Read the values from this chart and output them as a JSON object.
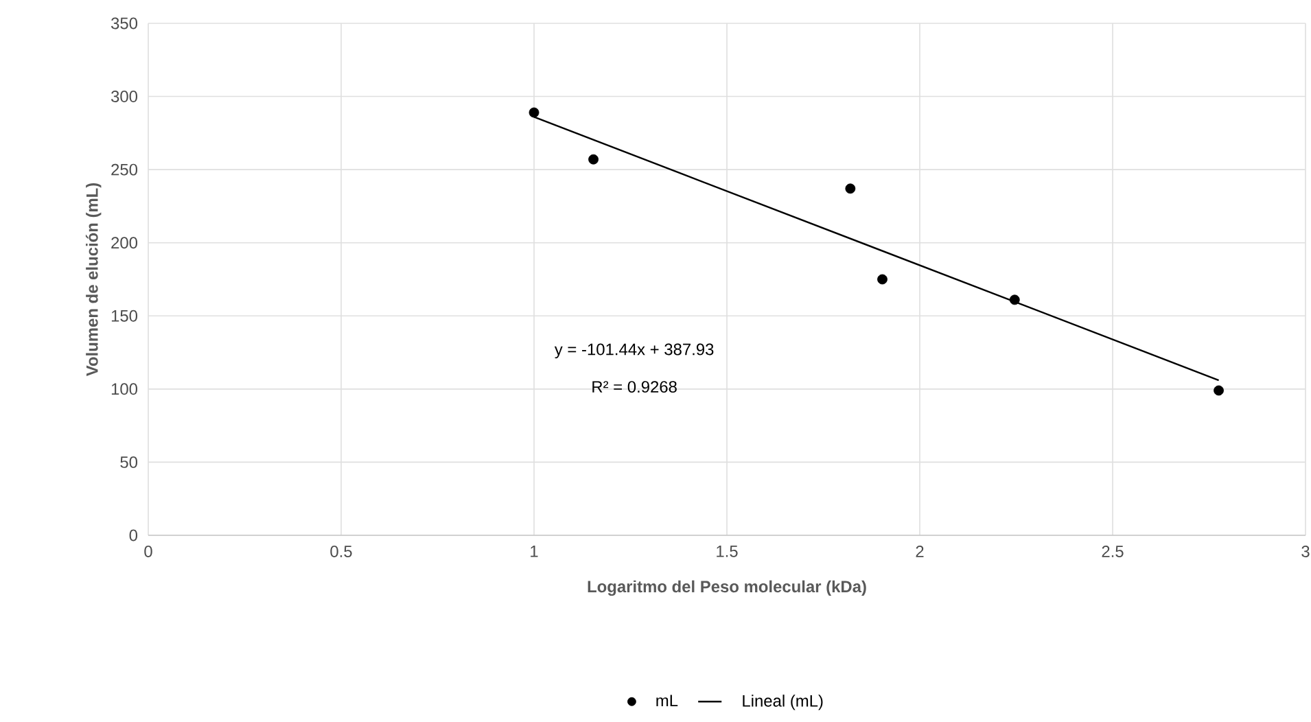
{
  "chart_data": {
    "type": "scatter",
    "xlabel": "Logaritmo del Peso molecular (kDa)",
    "ylabel": "Volumen de elución (mL)",
    "xlim": [
      0,
      3
    ],
    "xticks": [
      0,
      0.5,
      1,
      1.5,
      2,
      2.5,
      3
    ],
    "ylim": [
      0,
      350
    ],
    "yticks": [
      0,
      50,
      100,
      150,
      200,
      250,
      300,
      350
    ],
    "grid": true,
    "legend": "bottom",
    "series": [
      {
        "name": "mL",
        "color": "#000000",
        "marker": "circle",
        "x": [
          1.0,
          1.154,
          1.82,
          1.903,
          2.246,
          2.775
        ],
        "values": [
          289,
          257,
          237,
          175,
          161,
          99
        ]
      },
      {
        "name": "Lineal (mL)",
        "color": "#000000",
        "type": "line",
        "marker": "none",
        "x": [
          1.0,
          2.775
        ],
        "values": [
          286,
          106
        ]
      }
    ],
    "annotations": [
      "y = -101.44x + 387.93",
      "R² = 0.9268"
    ]
  }
}
